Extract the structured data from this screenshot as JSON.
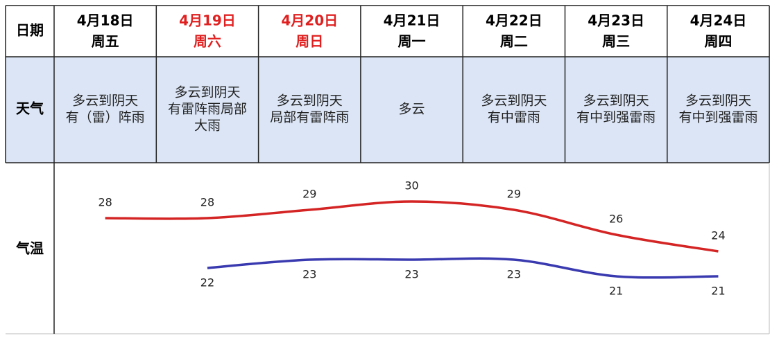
{
  "table": {
    "row_labels": {
      "date": "日期",
      "weather": "天气",
      "temperature": "气温"
    },
    "days": [
      {
        "date": "4月18日",
        "weekday": "周五",
        "color": "#000000",
        "weather": [
          "多云到阴天",
          "有（雷）阵雨"
        ]
      },
      {
        "date": "4月19日",
        "weekday": "周六",
        "color": "#e02020",
        "weather": [
          "多云到阴天",
          "有雷阵雨局部",
          "大雨"
        ]
      },
      {
        "date": "4月20日",
        "weekday": "周日",
        "color": "#e02020",
        "weather": [
          "多云到阴天",
          "局部有雷阵雨"
        ]
      },
      {
        "date": "4月21日",
        "weekday": "周一",
        "color": "#000000",
        "weather": [
          "多云"
        ]
      },
      {
        "date": "4月22日",
        "weekday": "周二",
        "color": "#000000",
        "weather": [
          "多云到阴天",
          "有中雷雨"
        ]
      },
      {
        "date": "4月23日",
        "weekday": "周三",
        "color": "#000000",
        "weather": [
          "多云到阴天",
          "有中到强雷雨"
        ]
      },
      {
        "date": "4月24日",
        "weekday": "周四",
        "color": "#000000",
        "weather": [
          "多云到阴天",
          "有中到强雷雨"
        ]
      }
    ]
  },
  "chart_data": {
    "type": "line",
    "series": [
      {
        "color": "#d42424",
        "values": [
          28,
          28,
          29,
          30,
          29,
          26,
          24
        ]
      },
      {
        "color": "#3a3ab0",
        "values": [
          null,
          22,
          23,
          23,
          23,
          21,
          21
        ]
      }
    ]
  }
}
